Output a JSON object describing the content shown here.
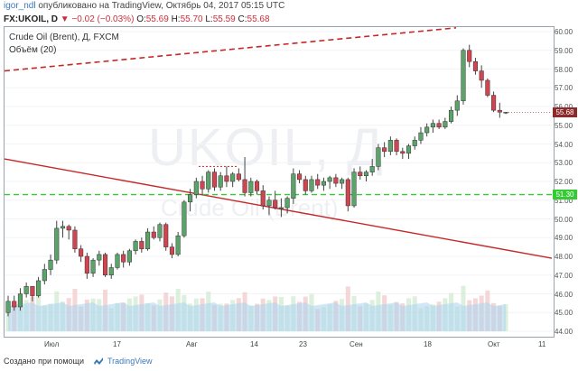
{
  "header": {
    "user": "igor_ndl",
    "published": "опубликовано на TradingView, Октябрь 04, 2017 05:15 UTC"
  },
  "ohlc": {
    "symbol": "FX:UKOIL, D",
    "change": "▼ −0.02 (−0.03%)",
    "open_label": "O:",
    "open": "55.69",
    "high_label": "H:",
    "high": "55.70",
    "low_label": "L:",
    "low": "55.59",
    "close_label": "C:",
    "close": "55.68"
  },
  "legend": {
    "series_title": "Crude Oil (Brent), Д, FXCM",
    "volume_label": "Объём (20)"
  },
  "watermark": {
    "symbol": "UKOIL, Д",
    "name": "Crude Oil (Brent)"
  },
  "footer": {
    "created_with": "Создано при помощи",
    "brand": "TradingView"
  },
  "colors": {
    "up": "#5aa46a",
    "down": "#d04550",
    "trend": "#c62828",
    "hline": "#33cc33",
    "volume": "#a9d4ee",
    "volume_down": "#f1c6c6",
    "volume_up": "#cfe8cf",
    "vol_ma": "#8bbfe3",
    "price_tag": "#8c2a2a",
    "hline_tag": "#33cc33"
  },
  "chart_data": {
    "type": "candlestick",
    "ylim": [
      44.0,
      60.0
    ],
    "ticks": [
      "60.00",
      "59.00",
      "58.00",
      "57.00",
      "56.00",
      "55.00",
      "54.00",
      "53.00",
      "52.00",
      "51.00",
      "50.00",
      "49.00",
      "48.00",
      "47.00",
      "46.00",
      "45.00",
      "44.00"
    ],
    "x_labels": [
      "Июл",
      "17",
      "Авг",
      "14",
      "23",
      "Сен",
      "18",
      "Окт",
      "11"
    ],
    "last_price": "55.68",
    "hline_price": "51.30",
    "candles": [
      [
        45.0,
        45.9,
        44.8,
        45.6
      ],
      [
        45.6,
        45.9,
        45.1,
        45.3
      ],
      [
        45.3,
        46.3,
        45.1,
        46.0
      ],
      [
        46.0,
        46.6,
        45.8,
        46.4
      ],
      [
        46.4,
        46.3,
        45.6,
        45.9
      ],
      [
        45.9,
        46.9,
        45.8,
        46.7
      ],
      [
        46.7,
        47.6,
        46.5,
        47.3
      ],
      [
        47.3,
        48.1,
        47.0,
        47.8
      ],
      [
        47.8,
        49.9,
        47.6,
        49.5
      ],
      [
        49.5,
        49.9,
        49.0,
        49.6
      ],
      [
        49.6,
        49.7,
        48.9,
        49.4
      ],
      [
        49.4,
        49.6,
        48.2,
        48.4
      ],
      [
        48.4,
        48.6,
        47.7,
        48.0
      ],
      [
        48.0,
        48.2,
        46.8,
        47.1
      ],
      [
        47.1,
        47.9,
        46.9,
        47.8
      ],
      [
        47.8,
        48.3,
        47.5,
        48.1
      ],
      [
        48.1,
        48.2,
        46.9,
        47.0
      ],
      [
        47.0,
        47.6,
        46.8,
        47.4
      ],
      [
        47.4,
        48.2,
        47.3,
        48.1
      ],
      [
        48.1,
        48.3,
        47.4,
        47.7
      ],
      [
        47.7,
        48.4,
        47.5,
        48.3
      ],
      [
        48.3,
        48.9,
        48.1,
        48.8
      ],
      [
        48.8,
        49.0,
        48.2,
        48.4
      ],
      [
        48.4,
        49.5,
        48.3,
        49.3
      ],
      [
        49.3,
        49.6,
        48.9,
        49.0
      ],
      [
        49.0,
        49.8,
        48.8,
        49.7
      ],
      [
        49.7,
        49.8,
        48.3,
        48.5
      ],
      [
        48.5,
        48.7,
        47.9,
        48.1
      ],
      [
        48.1,
        49.3,
        48.0,
        49.1
      ],
      [
        49.1,
        51.0,
        49.0,
        50.9
      ],
      [
        50.9,
        51.6,
        50.4,
        51.3
      ],
      [
        51.3,
        52.2,
        51.1,
        52.0
      ],
      [
        52.0,
        52.3,
        51.3,
        51.6
      ],
      [
        51.6,
        52.6,
        51.4,
        52.5
      ],
      [
        52.5,
        52.7,
        51.5,
        51.7
      ],
      [
        51.7,
        52.5,
        51.5,
        52.3
      ],
      [
        52.3,
        52.8,
        51.7,
        52.0
      ],
      [
        52.0,
        52.5,
        51.7,
        52.4
      ],
      [
        52.4,
        52.7,
        52.0,
        52.1
      ],
      [
        52.1,
        53.3,
        51.2,
        51.4
      ],
      [
        51.4,
        52.2,
        51.2,
        52.0
      ],
      [
        52.0,
        52.1,
        51.3,
        51.5
      ],
      [
        51.5,
        51.8,
        50.5,
        50.7
      ],
      [
        50.7,
        51.2,
        50.2,
        51.0
      ],
      [
        51.0,
        51.5,
        50.5,
        50.6
      ],
      [
        50.6,
        51.1,
        50.1,
        50.6
      ],
      [
        50.6,
        51.2,
        50.3,
        51.1
      ],
      [
        51.1,
        52.7,
        50.8,
        52.4
      ],
      [
        52.4,
        52.6,
        51.9,
        52.1
      ],
      [
        52.1,
        52.3,
        51.3,
        51.5
      ],
      [
        51.5,
        52.3,
        51.4,
        52.1
      ],
      [
        52.1,
        52.4,
        51.6,
        51.8
      ],
      [
        51.8,
        52.2,
        51.5,
        52.0
      ],
      [
        52.0,
        52.3,
        51.6,
        52.2
      ],
      [
        52.2,
        52.4,
        51.7,
        51.9
      ],
      [
        51.9,
        52.2,
        51.6,
        52.1
      ],
      [
        52.1,
        52.2,
        50.4,
        50.7
      ],
      [
        50.7,
        52.7,
        50.6,
        52.5
      ],
      [
        52.5,
        52.8,
        52.1,
        52.3
      ],
      [
        52.3,
        52.6,
        52.0,
        52.5
      ],
      [
        52.5,
        53.2,
        52.3,
        52.8
      ],
      [
        52.8,
        54.0,
        52.6,
        53.8
      ],
      [
        53.8,
        54.1,
        53.3,
        53.6
      ],
      [
        53.6,
        54.4,
        53.4,
        54.2
      ],
      [
        54.2,
        54.3,
        53.4,
        53.6
      ],
      [
        53.6,
        53.8,
        53.2,
        53.5
      ],
      [
        53.5,
        54.0,
        53.2,
        53.9
      ],
      [
        53.9,
        54.4,
        53.7,
        54.2
      ],
      [
        54.2,
        54.9,
        54.0,
        54.6
      ],
      [
        54.6,
        55.1,
        54.4,
        54.9
      ],
      [
        54.9,
        55.3,
        54.6,
        55.1
      ],
      [
        55.1,
        55.3,
        54.8,
        54.9
      ],
      [
        54.9,
        55.4,
        54.8,
        55.2
      ],
      [
        55.2,
        56.0,
        55.1,
        55.8
      ],
      [
        55.8,
        56.6,
        55.5,
        56.3
      ],
      [
        56.3,
        59.1,
        56.1,
        59.0
      ],
      [
        59.0,
        59.3,
        58.1,
        58.4
      ],
      [
        58.4,
        58.6,
        57.7,
        57.9
      ],
      [
        57.9,
        58.2,
        57.0,
        57.4
      ],
      [
        57.4,
        57.5,
        56.5,
        56.6
      ],
      [
        56.6,
        56.8,
        55.7,
        55.8
      ],
      [
        55.8,
        56.2,
        55.4,
        55.7
      ],
      [
        55.7,
        55.7,
        55.6,
        55.7
      ]
    ]
  }
}
